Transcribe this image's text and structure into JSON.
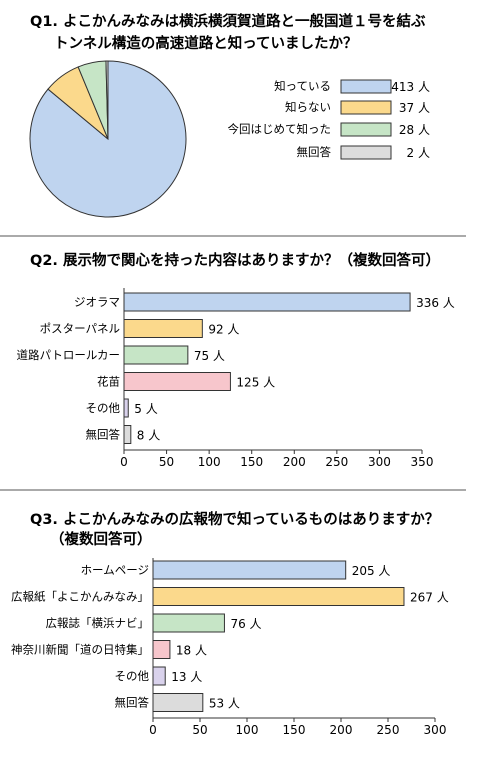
{
  "chart_data": [
    {
      "type": "pie",
      "title_line1": "Q1. よこかんみなみは横浜横須賀道路と一般国道１号を結ぶ",
      "title_line2": "トンネル構造の高速道路と知っていましたか？",
      "legend_position": "right",
      "slices": [
        {
          "label": "知っている",
          "value": 413,
          "value_label": "413 人",
          "color": "#bfd4ef"
        },
        {
          "label": "知らない",
          "value": 37,
          "value_label": "37 人",
          "color": "#fbd98c"
        },
        {
          "label": "今回はじめて知った",
          "value": 28,
          "value_label": "28 人",
          "color": "#c6e5c6"
        },
        {
          "label": "無回答",
          "value": 2,
          "value_label": "2 人",
          "color": "#dcdcdc"
        }
      ]
    },
    {
      "type": "bar",
      "orientation": "horizontal",
      "title": "Q2. 展示物で関心を持った内容はありますか？（複数回答可）",
      "categories": [
        "ジオラマ",
        "ポスターパネル",
        "道路パトロールカー",
        "花苗",
        "その他",
        "無回答"
      ],
      "values": [
        336,
        92,
        75,
        125,
        5,
        8
      ],
      "value_labels": [
        "336 人",
        "92 人",
        "75 人",
        "125 人",
        "5 人",
        "8 人"
      ],
      "colors": [
        "#bfd4ef",
        "#fbd98c",
        "#c6e5c6",
        "#f7c6cc",
        "#d9d2ec",
        "#dcdcdc"
      ],
      "xlim": [
        0,
        350
      ],
      "xticks": [
        "0",
        "50",
        "100",
        "150",
        "200",
        "250",
        "300",
        "350"
      ]
    },
    {
      "type": "bar",
      "orientation": "horizontal",
      "title_line1": "Q3. よこかんみなみの広報物で知っているものはありますか？",
      "title_line2": "（複数回答可）",
      "categories": [
        "ホームページ",
        "広報紙「よこかんみなみ」",
        "広報誌「横浜ナビ」",
        "神奈川新聞「道の日特集」",
        "その他",
        "無回答"
      ],
      "values": [
        205,
        267,
        76,
        18,
        13,
        53
      ],
      "value_labels": [
        "205 人",
        "267 人",
        "76 人",
        "18 人",
        "13 人",
        "53 人"
      ],
      "colors": [
        "#bfd4ef",
        "#fbd98c",
        "#c6e5c6",
        "#f7c6cc",
        "#d9d2ec",
        "#dcdcdc"
      ],
      "xlim": [
        0,
        300
      ],
      "xticks": [
        "0",
        "50",
        "100",
        "150",
        "200",
        "250",
        "300"
      ]
    }
  ]
}
